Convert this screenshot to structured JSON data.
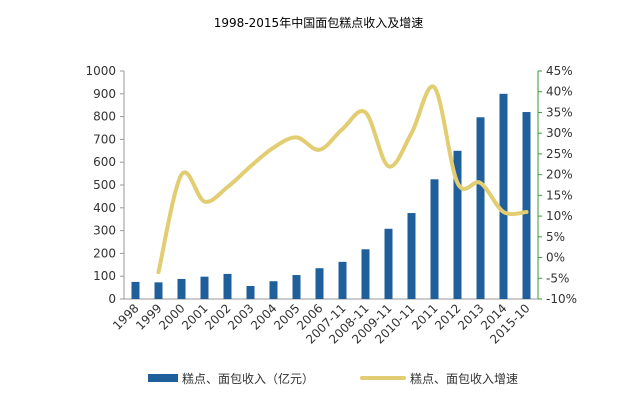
{
  "chart_data": {
    "type": "bar",
    "title": "1998-2015年中国面包糕点收入及增速",
    "categories": [
      "1998",
      "1999",
      "2000",
      "2001",
      "2002",
      "2003",
      "2004",
      "2005",
      "2006",
      "2007-11",
      "2008-11",
      "2009-11",
      "2010-11",
      "2011",
      "2012",
      "2013",
      "2014",
      "2015-10"
    ],
    "ylim": [
      0,
      1000
    ],
    "yticks": [
      0,
      100,
      200,
      300,
      400,
      500,
      600,
      700,
      800,
      900,
      1000
    ],
    "y2lim": [
      -10,
      45
    ],
    "y2ticks": [
      "-10%",
      "-5%",
      "0%",
      "5%",
      "10%",
      "15%",
      "20%",
      "25%",
      "30%",
      "35%",
      "40%",
      "45%"
    ],
    "grid": false,
    "legend_position": "bottom",
    "series": [
      {
        "name": "糕点、面包收入（亿元）",
        "type": "bar",
        "axis": "left",
        "color": "#1F5F9B",
        "values": [
          75,
          73,
          88,
          98,
          110,
          57,
          78,
          105,
          135,
          163,
          218,
          308,
          377,
          525,
          650,
          797,
          900,
          820
        ]
      },
      {
        "name": "糕点、面包收入增速",
        "type": "line",
        "axis": "right",
        "color": "#E3CD72",
        "values": [
          null,
          -3.5,
          20,
          13.5,
          17,
          22,
          26.5,
          29,
          26,
          31,
          35,
          22,
          30,
          41,
          18,
          18,
          11,
          11
        ]
      }
    ]
  }
}
